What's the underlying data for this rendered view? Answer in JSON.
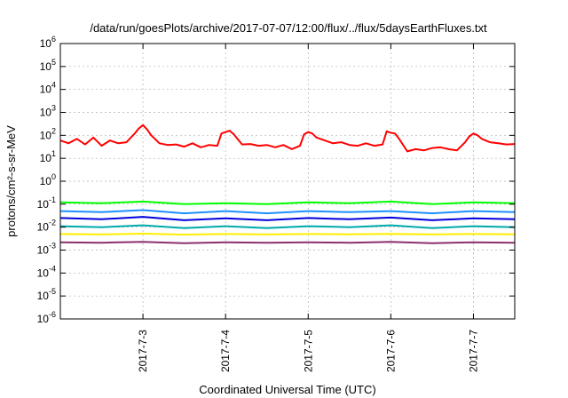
{
  "chart_data": {
    "type": "line",
    "title": "/data/run/goesPlots/archive/2017-07-07/12:00/flux/../flux/5daysEarthFluxes.txt",
    "xlabel": "Coordinated Universal Time (UTC)",
    "ylabel": "protons/cm²-s-sr-MeV",
    "yscale": "log",
    "ylim": [
      1e-06,
      1000000.0
    ],
    "xlim": [
      2.0,
      7.5
    ],
    "x_unit": "days of July 2017 (UTC)",
    "grid": true,
    "legend": "none",
    "y_ticks": [
      {
        "base": "10",
        "exp": "-6",
        "value": 1e-06
      },
      {
        "base": "10",
        "exp": "-5",
        "value": 1e-05
      },
      {
        "base": "10",
        "exp": "-4",
        "value": 0.0001
      },
      {
        "base": "10",
        "exp": "-3",
        "value": 0.001
      },
      {
        "base": "10",
        "exp": "-2",
        "value": 0.01
      },
      {
        "base": "10",
        "exp": "-1",
        "value": 0.1
      },
      {
        "base": "10",
        "exp": "0",
        "value": 1
      },
      {
        "base": "10",
        "exp": "1",
        "value": 10
      },
      {
        "base": "10",
        "exp": "2",
        "value": 100
      },
      {
        "base": "10",
        "exp": "3",
        "value": 1000
      },
      {
        "base": "10",
        "exp": "4",
        "value": 10000
      },
      {
        "base": "10",
        "exp": "5",
        "value": 100000
      },
      {
        "base": "10",
        "exp": "6",
        "value": 1000000
      }
    ],
    "x_ticks": [
      {
        "label": "2017-7-3",
        "x": 3.0
      },
      {
        "label": "2017-7-4",
        "x": 4.0
      },
      {
        "label": "2017-7-5",
        "x": 5.0
      },
      {
        "label": "2017-7-6",
        "x": 6.0
      },
      {
        "label": "2017-7-7",
        "x": 7.0
      }
    ],
    "series": [
      {
        "color": "#ff0000",
        "x": [
          2.0,
          2.1,
          2.2,
          2.3,
          2.4,
          2.5,
          2.6,
          2.7,
          2.8,
          2.9,
          2.95,
          3.0,
          3.05,
          3.1,
          3.2,
          3.3,
          3.4,
          3.5,
          3.6,
          3.7,
          3.8,
          3.9,
          3.95,
          4.0,
          4.05,
          4.1,
          4.2,
          4.3,
          4.4,
          4.5,
          4.6,
          4.7,
          4.8,
          4.9,
          4.95,
          5.0,
          5.05,
          5.1,
          5.2,
          5.3,
          5.4,
          5.5,
          5.6,
          5.7,
          5.8,
          5.9,
          5.95,
          6.0,
          6.05,
          6.1,
          6.2,
          6.3,
          6.4,
          6.5,
          6.6,
          6.7,
          6.8,
          6.9,
          6.95,
          7.0,
          7.05,
          7.1,
          7.2,
          7.3,
          7.4,
          7.5
        ],
        "y": [
          60,
          45,
          70,
          40,
          80,
          35,
          60,
          45,
          50,
          120,
          200,
          280,
          180,
          100,
          45,
          38,
          40,
          32,
          45,
          30,
          38,
          35,
          120,
          140,
          160,
          110,
          40,
          42,
          35,
          38,
          30,
          38,
          25,
          35,
          110,
          140,
          120,
          80,
          60,
          45,
          50,
          38,
          35,
          45,
          35,
          40,
          150,
          130,
          120,
          70,
          20,
          25,
          22,
          28,
          30,
          25,
          22,
          50,
          90,
          120,
          100,
          70,
          50,
          45,
          40,
          42
        ]
      },
      {
        "color": "#00ff00",
        "x": [
          2.0,
          2.5,
          3.0,
          3.5,
          4.0,
          4.5,
          5.0,
          5.5,
          6.0,
          6.5,
          7.0,
          7.5
        ],
        "y": [
          0.12,
          0.11,
          0.13,
          0.1,
          0.11,
          0.1,
          0.12,
          0.11,
          0.13,
          0.1,
          0.12,
          0.11
        ]
      },
      {
        "color": "#1e90ff",
        "x": [
          2.0,
          2.5,
          3.0,
          3.5,
          4.0,
          4.5,
          5.0,
          5.5,
          6.0,
          6.5,
          7.0,
          7.5
        ],
        "y": [
          0.05,
          0.045,
          0.055,
          0.04,
          0.05,
          0.04,
          0.05,
          0.045,
          0.05,
          0.04,
          0.05,
          0.045
        ]
      },
      {
        "color": "#0000dd",
        "x": [
          2.0,
          2.5,
          3.0,
          3.5,
          4.0,
          4.5,
          5.0,
          5.5,
          6.0,
          6.5,
          7.0,
          7.5
        ],
        "y": [
          0.025,
          0.022,
          0.028,
          0.02,
          0.024,
          0.02,
          0.025,
          0.022,
          0.026,
          0.02,
          0.024,
          0.022
        ]
      },
      {
        "color": "#00aaaa",
        "x": [
          2.0,
          2.5,
          3.0,
          3.5,
          4.0,
          4.5,
          5.0,
          5.5,
          6.0,
          6.5,
          7.0,
          7.5
        ],
        "y": [
          0.011,
          0.01,
          0.012,
          0.009,
          0.011,
          0.009,
          0.011,
          0.01,
          0.012,
          0.009,
          0.011,
          0.01
        ]
      },
      {
        "color": "#ffee00",
        "x": [
          2.0,
          2.5,
          3.0,
          3.5,
          4.0,
          4.5,
          5.0,
          5.5,
          6.0,
          6.5,
          7.0,
          7.5
        ],
        "y": [
          0.005,
          0.0048,
          0.0052,
          0.0047,
          0.005,
          0.0048,
          0.005,
          0.0049,
          0.0051,
          0.0048,
          0.005,
          0.0049
        ]
      },
      {
        "color": "#8b2f6f",
        "x": [
          2.0,
          2.5,
          3.0,
          3.5,
          4.0,
          4.5,
          5.0,
          5.5,
          6.0,
          6.5,
          7.0,
          7.5
        ],
        "y": [
          0.0022,
          0.0021,
          0.0023,
          0.002,
          0.0022,
          0.0021,
          0.0022,
          0.0021,
          0.0023,
          0.002,
          0.0022,
          0.0021
        ]
      }
    ]
  }
}
